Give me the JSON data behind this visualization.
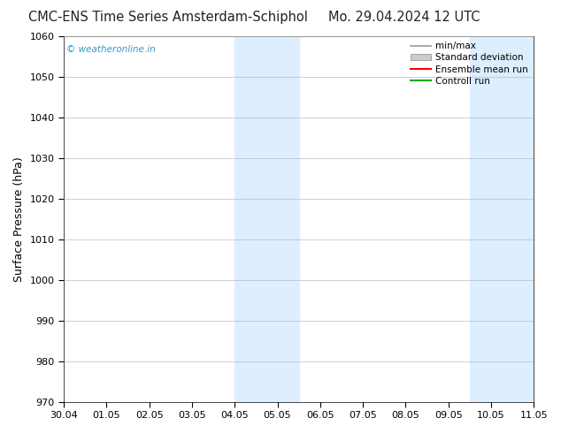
{
  "title_left": "CMC-ENS Time Series Amsterdam-Schiphol",
  "title_right": "Mo. 29.04.2024 12 UTC",
  "ylabel": "Surface Pressure (hPa)",
  "ylim": [
    970,
    1060
  ],
  "yticks": [
    970,
    980,
    990,
    1000,
    1010,
    1020,
    1030,
    1040,
    1050,
    1060
  ],
  "xlabels": [
    "30.04",
    "01.05",
    "02.05",
    "03.05",
    "04.05",
    "05.05",
    "06.05",
    "07.05",
    "08.05",
    "09.05",
    "10.05",
    "11.05"
  ],
  "shaded_bands": [
    {
      "xstart": 4.0,
      "xend": 5.5
    },
    {
      "xstart": 9.5,
      "xend": 11.0
    }
  ],
  "shade_color": "#ddeeff",
  "background_color": "#ffffff",
  "watermark": "© weatheronline.in",
  "watermark_color": "#3399cc",
  "legend_items": [
    {
      "label": "min/max",
      "color": "#999999",
      "lw": 1.2,
      "type": "line"
    },
    {
      "label": "Standard deviation",
      "color": "#cccccc",
      "lw": 1.0,
      "type": "box"
    },
    {
      "label": "Ensemble mean run",
      "color": "#ff0000",
      "lw": 1.5,
      "type": "line"
    },
    {
      "label": "Controll run",
      "color": "#00aa00",
      "lw": 1.5,
      "type": "line"
    }
  ],
  "title_fontsize": 10.5,
  "axis_fontsize": 9,
  "tick_fontsize": 8,
  "title_color": "#222222"
}
